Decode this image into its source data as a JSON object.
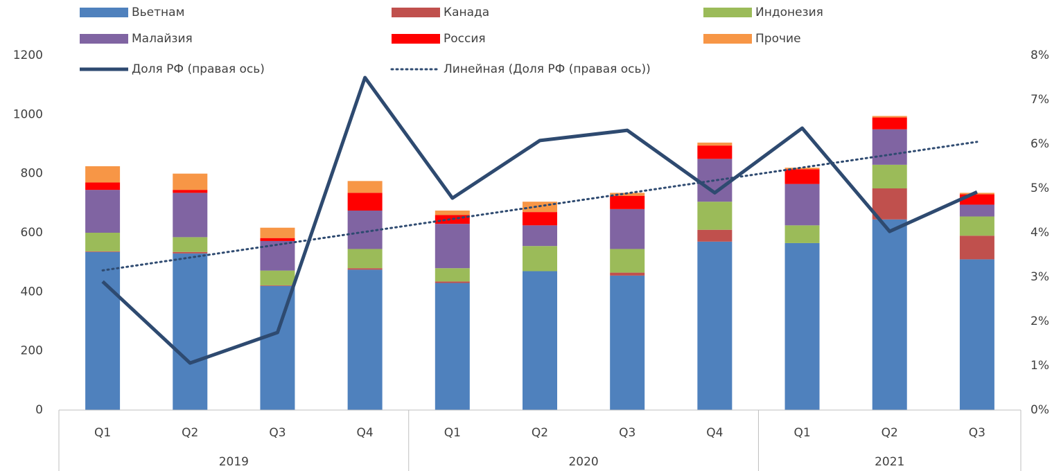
{
  "chart_data": {
    "type": "bar",
    "stacked": true,
    "category_groups": [
      {
        "name": "2019",
        "categories": [
          "Q1",
          "Q2",
          "Q3",
          "Q4"
        ]
      },
      {
        "name": "2020",
        "categories": [
          "Q1",
          "Q2",
          "Q3",
          "Q4"
        ]
      },
      {
        "name": "2021",
        "categories": [
          "Q1",
          "Q2",
          "Q3"
        ]
      }
    ],
    "series": [
      {
        "name": "Вьетнам",
        "color": "#4f81bd",
        "values": [
          535,
          530,
          420,
          475,
          430,
          470,
          455,
          570,
          565,
          645,
          510
        ]
      },
      {
        "name": "Канада",
        "color": "#c0504d",
        "values": [
          2,
          5,
          2,
          5,
          5,
          0,
          10,
          40,
          0,
          105,
          80
        ]
      },
      {
        "name": "Индонезия",
        "color": "#9bbb59",
        "values": [
          63,
          50,
          50,
          65,
          45,
          85,
          80,
          95,
          60,
          80,
          65
        ]
      },
      {
        "name": "Малайзия",
        "color": "#8064a2",
        "values": [
          145,
          150,
          100,
          130,
          150,
          70,
          135,
          145,
          140,
          120,
          40
        ]
      },
      {
        "name": "Россия",
        "color": "#ff0000",
        "values": [
          25,
          10,
          10,
          60,
          30,
          45,
          45,
          45,
          50,
          40,
          35
        ]
      },
      {
        "name": "Прочие",
        "color": "#f79646",
        "values": [
          55,
          55,
          35,
          40,
          15,
          35,
          10,
          10,
          5,
          5,
          5
        ]
      },
      {
        "name": "Доля РФ (правая ось)",
        "type": "line",
        "axis": "y2",
        "color": "#2e4a70",
        "values": [
          2.9,
          1.06,
          1.75,
          7.5,
          4.78,
          6.08,
          6.31,
          4.9,
          6.36,
          4.03,
          4.92
        ]
      },
      {
        "name": "Линейная (Доля РФ (правая ось))",
        "type": "line",
        "axis": "y2",
        "dash": "dotted",
        "color": "#2e4a70",
        "values": [
          3.15,
          3.44,
          3.73,
          4.02,
          4.31,
          4.6,
          4.89,
          5.18,
          5.47,
          5.76,
          6.05
        ]
      }
    ],
    "ylim": [
      0,
      1200
    ],
    "yticks": [
      0,
      200,
      400,
      600,
      800,
      1000,
      1200
    ],
    "y2lim": [
      0,
      8
    ],
    "y2ticks": [
      {
        "value": 0,
        "label": "0%"
      },
      {
        "value": 1,
        "label": "1%"
      },
      {
        "value": 2,
        "label": "2%"
      },
      {
        "value": 3,
        "label": "3%"
      },
      {
        "value": 4,
        "label": "4%"
      },
      {
        "value": 5,
        "label": "5%"
      },
      {
        "value": 6,
        "label": "6%"
      },
      {
        "value": 7,
        "label": "7%"
      },
      {
        "value": 8,
        "label": "8%"
      }
    ],
    "grid": false,
    "legend": "top"
  }
}
